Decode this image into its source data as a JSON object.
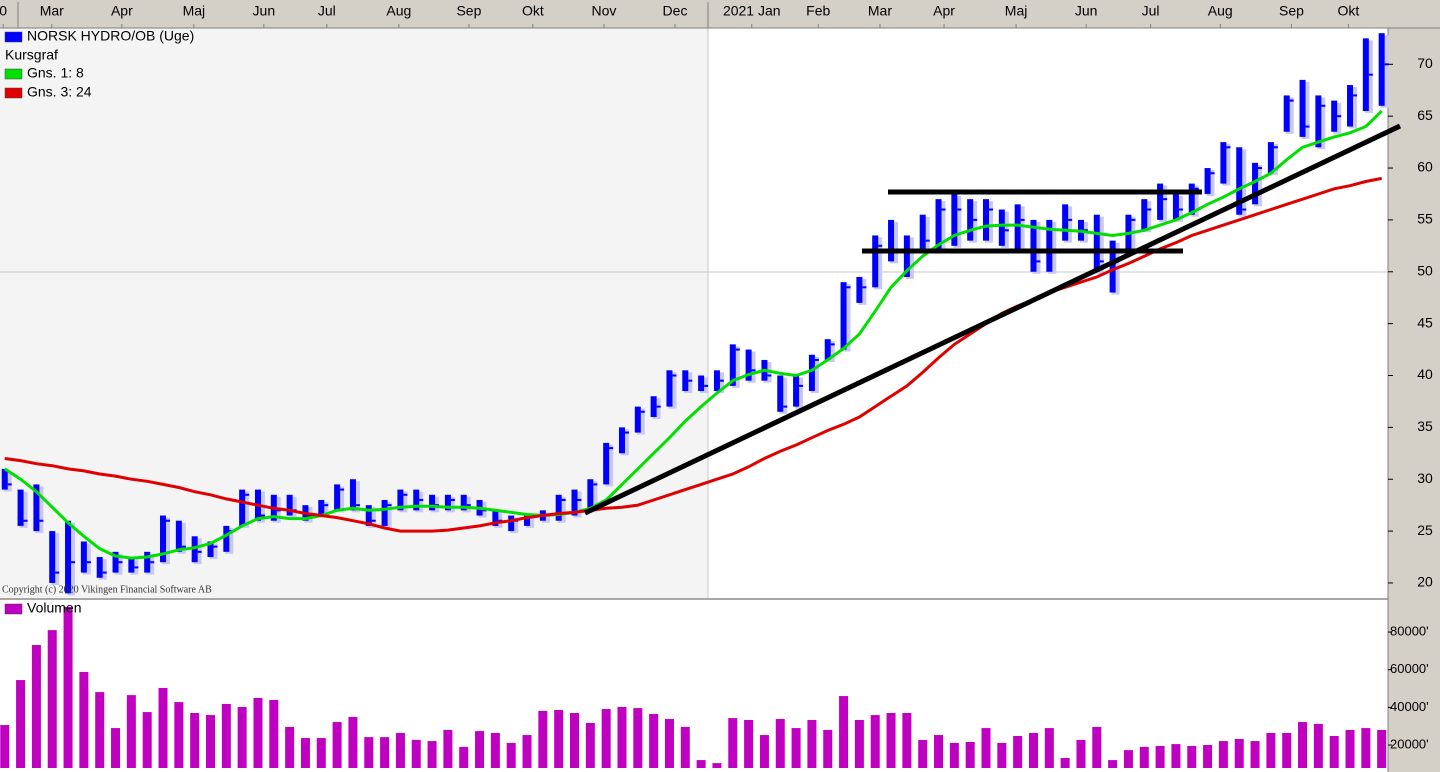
{
  "chart_data": [
    {
      "type": "ohlc",
      "subtitle": "Kursgraf",
      "copyright": "Copyright (c) 2020 Vikingen Financial Software AB",
      "xlim": [
        -0.3,
        87.4
      ],
      "xticks": [
        {
          "value": -0.1,
          "label": "0"
        },
        {
          "value": 2.97,
          "label": "Mar"
        },
        {
          "value": 7.4,
          "label": "Apr"
        },
        {
          "value": 11.95,
          "label": "Maj"
        },
        {
          "value": 16.37,
          "label": "Jun"
        },
        {
          "value": 20.35,
          "label": "Jul"
        },
        {
          "value": 24.9,
          "label": "Aug"
        },
        {
          "value": 29.33,
          "label": "Sep"
        },
        {
          "value": 33.37,
          "label": "Okt"
        },
        {
          "value": 37.86,
          "label": "Nov"
        },
        {
          "value": 42.35,
          "label": "Dec"
        },
        {
          "value": 47.2,
          "label": "2021 Jan"
        },
        {
          "value": 51.4,
          "label": "Feb"
        },
        {
          "value": 55.3,
          "label": "Mar"
        },
        {
          "value": 59.35,
          "label": "Apr"
        },
        {
          "value": 63.9,
          "label": "Maj"
        },
        {
          "value": 68.33,
          "label": "Jun"
        },
        {
          "value": 72.4,
          "label": "Jul"
        },
        {
          "value": 76.8,
          "label": "Aug"
        },
        {
          "value": 81.3,
          "label": "Sep"
        },
        {
          "value": 84.9,
          "label": "Okt"
        }
      ],
      "ylim": [
        18.55,
        73.5
      ],
      "yticks": [
        20,
        25,
        30,
        35,
        40,
        45,
        50,
        55,
        60,
        65,
        70
      ],
      "series": [
        {
          "name": "NORSK HYDRO/OB (Uge)",
          "color": "#0000ff",
          "high": [
            31,
            29,
            29.5,
            25,
            26,
            24,
            22.5,
            23,
            22.5,
            23,
            26.5,
            26,
            24.5,
            24,
            25.5,
            29,
            29,
            28.5,
            28.5,
            27.5,
            28,
            29.5,
            30,
            27.5,
            28,
            29,
            29,
            28.5,
            28.5,
            28.5,
            28,
            27,
            26.5,
            26.5,
            27,
            28.5,
            29,
            30,
            33.5,
            35,
            37,
            38,
            40.5,
            40.5,
            40,
            40.5,
            43,
            42.5,
            41.5,
            40,
            40,
            42,
            43.5,
            49,
            49.5,
            53.5,
            55,
            53.5,
            55.5,
            57,
            57.5,
            57,
            57,
            56,
            56.5,
            55,
            55,
            56.5,
            55,
            55.5,
            53,
            55.5,
            57,
            58.5,
            57.5,
            58.5,
            60,
            62.5,
            62,
            60.5,
            62.5,
            67,
            68.5,
            67,
            66.5,
            68,
            72.5,
            73
          ],
          "low": [
            29,
            25.5,
            25,
            20,
            19,
            21,
            20.5,
            21,
            21,
            21,
            22,
            23,
            22,
            22.5,
            23,
            25.5,
            26,
            26,
            26.5,
            26,
            26.5,
            27,
            27,
            25.5,
            25.5,
            27,
            27,
            27,
            27,
            27,
            26.5,
            25.5,
            25,
            25.5,
            26,
            26,
            26.5,
            27,
            29.5,
            32.5,
            34.5,
            36,
            37,
            38.5,
            38.5,
            38.5,
            39,
            39.5,
            39.5,
            36.5,
            37,
            38.5,
            41.5,
            42.5,
            47,
            48.5,
            51,
            49.5,
            52,
            52,
            52.5,
            53,
            53,
            52.5,
            52,
            50,
            50,
            53,
            53,
            50,
            48,
            52,
            54,
            55,
            55,
            55.5,
            57.5,
            58.5,
            55.5,
            56.5,
            59.5,
            63.5,
            63,
            62,
            63.5,
            64,
            65.5,
            66
          ],
          "close": [
            29.5,
            26,
            26,
            21,
            22,
            22,
            21,
            22,
            21.5,
            22,
            26,
            23.5,
            23,
            23.5,
            25,
            28.5,
            26.5,
            27,
            27,
            26.5,
            27.5,
            29,
            27.5,
            26,
            27.5,
            28.5,
            28,
            27.5,
            28,
            27.5,
            27,
            26,
            26,
            26.5,
            26.5,
            28,
            28,
            29.5,
            33,
            34.5,
            36.5,
            37,
            40,
            39.5,
            39,
            39.5,
            42.5,
            40.5,
            40,
            37,
            39,
            41.5,
            43,
            48.5,
            48.5,
            52.5,
            52,
            52,
            53,
            56,
            56,
            55,
            56,
            54,
            55,
            51,
            52,
            55,
            54,
            51,
            52,
            55,
            56,
            57,
            56,
            58,
            59.5,
            62,
            56,
            60,
            62,
            66.5,
            64,
            66,
            65,
            67,
            69,
            70
          ]
        },
        {
          "name": "Gns. 1: 8",
          "color": "#00e000",
          "values": [
            31,
            30,
            28.8,
            27.3,
            25.8,
            24.5,
            23.3,
            22.6,
            22.4,
            22.5,
            22.8,
            23.2,
            23.4,
            23.8,
            24.6,
            25.5,
            26.2,
            26.4,
            26.2,
            26.2,
            26.5,
            27,
            27.2,
            27,
            27.1,
            27.3,
            27.4,
            27.4,
            27.3,
            27.3,
            27.2,
            27,
            26.8,
            26.6,
            26.5,
            26.6,
            26.8,
            27.2,
            28,
            29.5,
            31,
            32.5,
            34,
            35.6,
            37,
            38.3,
            39.5,
            40.1,
            40.5,
            40.2,
            40,
            40.5,
            41.5,
            42.6,
            44,
            46.2,
            48.5,
            50.1,
            51.5,
            52.6,
            53.5,
            54,
            54.4,
            54.5,
            54.5,
            54.3,
            54.1,
            54,
            53.9,
            53.7,
            53.5,
            53.7,
            54,
            54.5,
            55,
            55.7,
            56.5,
            57.2,
            58,
            58.7,
            59.5,
            60.8,
            62,
            62.5,
            63,
            63.4,
            64,
            65.5
          ]
        },
        {
          "name": "Gns. 3: 24",
          "color": "#e00000",
          "values": [
            32,
            31.8,
            31.5,
            31.3,
            31,
            30.8,
            30.5,
            30.3,
            30,
            29.8,
            29.5,
            29.2,
            28.8,
            28.5,
            28.1,
            27.8,
            27.5,
            27.2,
            27,
            26.7,
            26.5,
            26.3,
            26,
            25.7,
            25.3,
            25,
            25,
            25,
            25.1,
            25.3,
            25.5,
            25.8,
            26,
            26.3,
            26.5,
            26.7,
            26.8,
            27,
            27.2,
            27.3,
            27.5,
            28,
            28.5,
            29,
            29.5,
            30,
            30.5,
            31.2,
            32,
            32.7,
            33.3,
            34,
            34.7,
            35.3,
            36,
            37,
            38,
            39,
            40.3,
            41.7,
            43,
            44,
            45,
            46,
            46.7,
            47.3,
            48,
            48.5,
            49,
            49.5,
            50.2,
            50.8,
            51.5,
            52.2,
            52.8,
            53.5,
            54,
            54.5,
            55,
            55.5,
            56,
            56.5,
            57,
            57.5,
            58,
            58.3,
            58.7,
            59
          ]
        }
      ]
    },
    {
      "type": "bar",
      "ylim": [
        7800,
        97000
      ],
      "yticks": [
        {
          "value": 20000,
          "label": "20000'"
        },
        {
          "value": 40000,
          "label": "40000'"
        },
        {
          "value": 60000,
          "label": "60000'"
        },
        {
          "value": 80000,
          "label": "80000'"
        }
      ],
      "series": [
        {
          "name": "Volumen",
          "color": "#c000c0",
          "values": [
            30600,
            54500,
            73100,
            81000,
            93300,
            58800,
            48100,
            29000,
            46500,
            37500,
            50300,
            42800,
            37000,
            35900,
            41800,
            40200,
            45000,
            43900,
            29600,
            23700,
            23700,
            32200,
            34900,
            24200,
            24200,
            26400,
            22700,
            22100,
            28000,
            19000,
            27400,
            26400,
            21100,
            25300,
            38100,
            38600,
            37000,
            31700,
            39100,
            40200,
            39600,
            36500,
            33800,
            29600,
            12000,
            10400,
            34300,
            33300,
            25300,
            33800,
            29000,
            33300,
            28000,
            46000,
            33300,
            35900,
            37000,
            37000,
            22700,
            25300,
            21100,
            21600,
            29000,
            21100,
            24800,
            26400,
            29000,
            13100,
            22700,
            29600,
            12000,
            17300,
            19000,
            19500,
            20500,
            19500,
            20000,
            22100,
            23200,
            22100,
            26400,
            26400,
            32200,
            31200,
            24800,
            28000,
            29000,
            28000
          ]
        }
      ]
    }
  ]
}
